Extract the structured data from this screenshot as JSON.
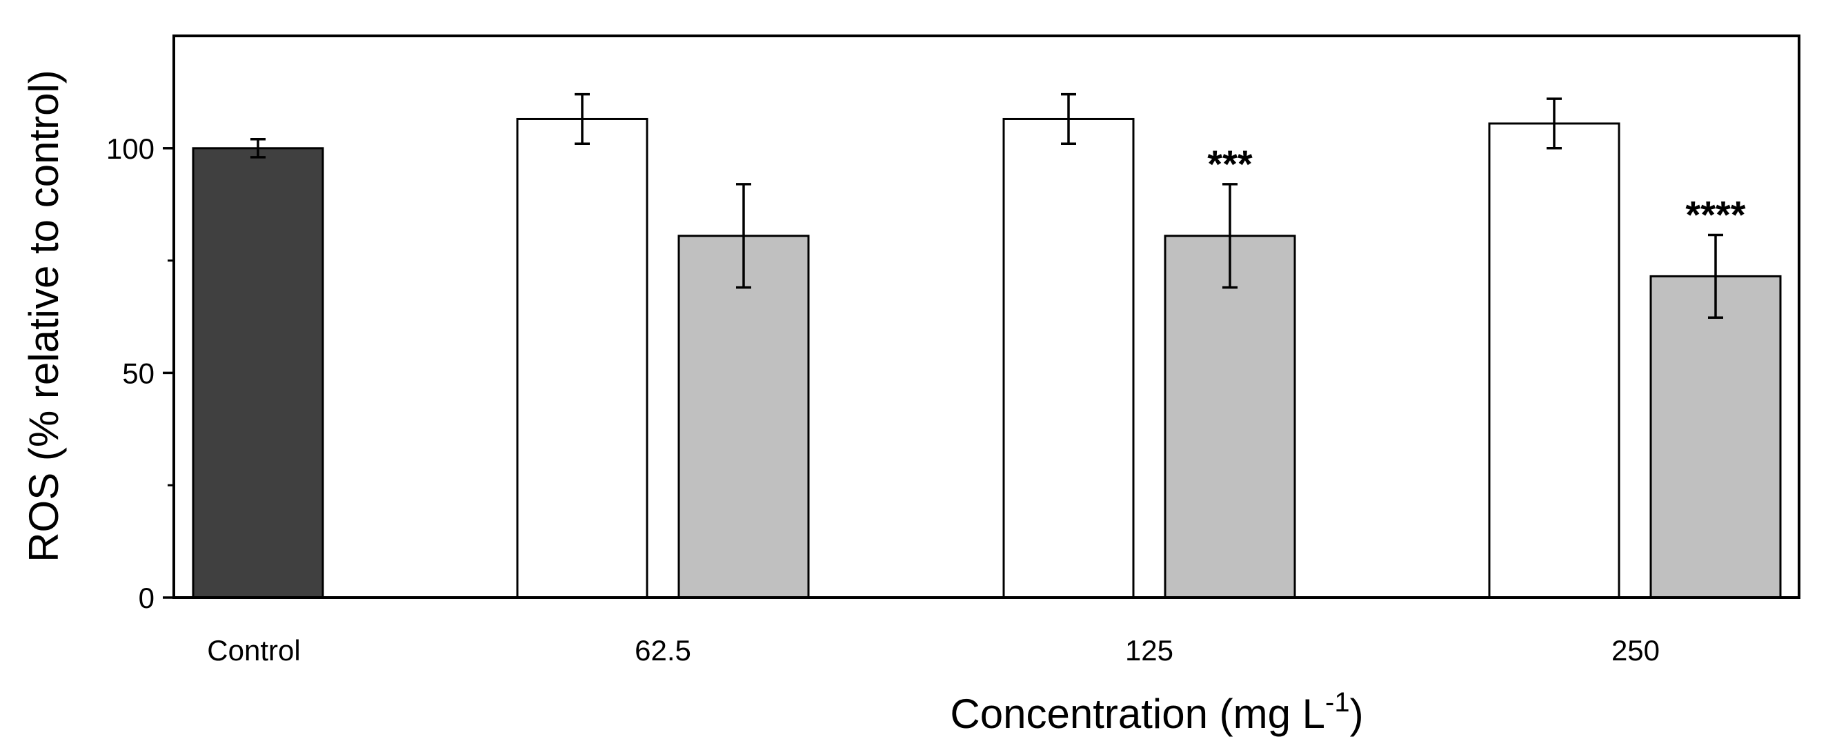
{
  "chart_data": {
    "type": "bar",
    "ylabel": "ROS (% relative to control)",
    "xlabel": {
      "main": "Concentration (mg L",
      "superscript": "-1",
      "close": ")"
    },
    "ylim": [
      0,
      125
    ],
    "yticks": [
      0,
      50,
      100
    ],
    "yticks_labels": [
      "0",
      "50",
      "100"
    ],
    "minor_yticks": [
      25,
      75
    ],
    "grid": false,
    "bars": [
      {
        "group": "Control",
        "value": 100,
        "error": 2,
        "color": "#404040",
        "sig": ""
      },
      {
        "group": "62.5",
        "value": 106.5,
        "error": 5.5,
        "color": "#ffffff",
        "sig": ""
      },
      {
        "group": "62.5",
        "value": 80.5,
        "error": 11.5,
        "color": "#c0c0c0",
        "sig": ""
      },
      {
        "group": "125",
        "value": 106.5,
        "error": 5.5,
        "color": "#ffffff",
        "sig": ""
      },
      {
        "group": "125",
        "value": 80.5,
        "error": 11.5,
        "color": "#c0c0c0",
        "sig": "***"
      },
      {
        "group": "250",
        "value": 105.5,
        "error": 5.5,
        "color": "#ffffff",
        "sig": ""
      },
      {
        "group": "250",
        "value": 71.5,
        "error": 9.2,
        "color": "#c0c0c0",
        "sig": "****"
      }
    ],
    "categories": [
      "Control",
      "62.5",
      "125",
      "250"
    ]
  }
}
